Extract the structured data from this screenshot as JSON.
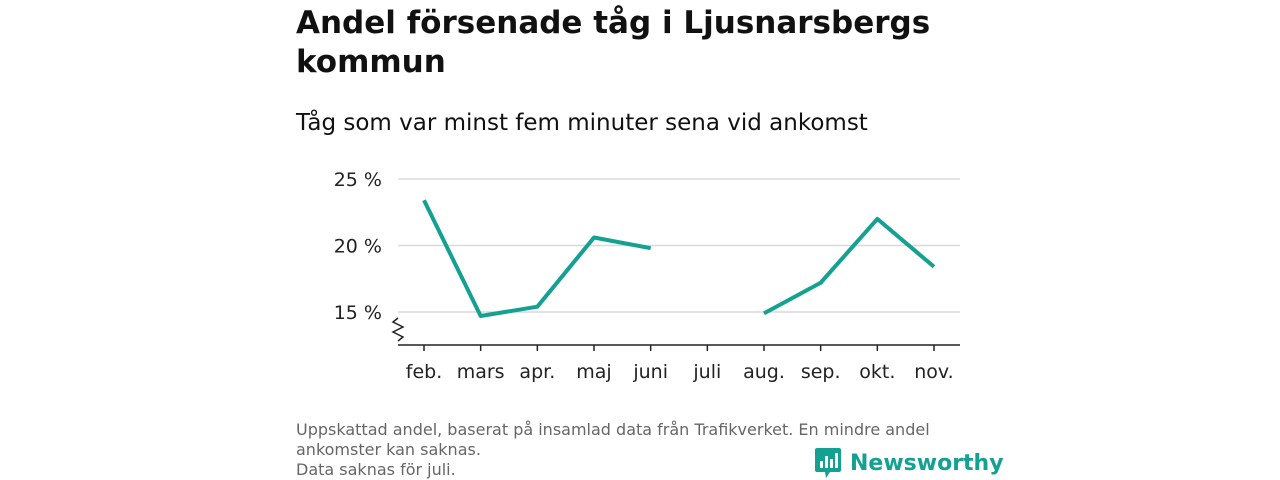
{
  "title": "Andel försenade tåg i Ljusnarsbergs kommun",
  "subtitle": "Tåg som var minst fem minuter sena vid ankomst",
  "footnote": {
    "line1": "Uppskattad andel, baserat på insamlad data från Trafikverket. En mindre andel ankomster kan saknas.",
    "line2": "Data saknas för juli."
  },
  "brand": {
    "name": "Newsworthy",
    "icon": "newsworthy-logo-icon",
    "color": "#14a192"
  },
  "chart_data": {
    "type": "line",
    "categories": [
      "feb.",
      "mars",
      "apr.",
      "maj",
      "juni",
      "juli",
      "aug.",
      "sep.",
      "okt.",
      "nov."
    ],
    "series": [
      {
        "values": [
          23.4,
          14.7,
          15.4,
          20.6,
          19.8,
          null,
          14.9,
          17.2,
          22.0,
          18.4
        ],
        "color": "#14a192"
      }
    ],
    "yticks": [
      15,
      20,
      25
    ],
    "ytick_labels": [
      "15 %",
      "20 %",
      "25 %"
    ],
    "ylim": [
      12.5,
      25
    ],
    "y_axis_break": true,
    "grid": true,
    "legend": "none"
  }
}
